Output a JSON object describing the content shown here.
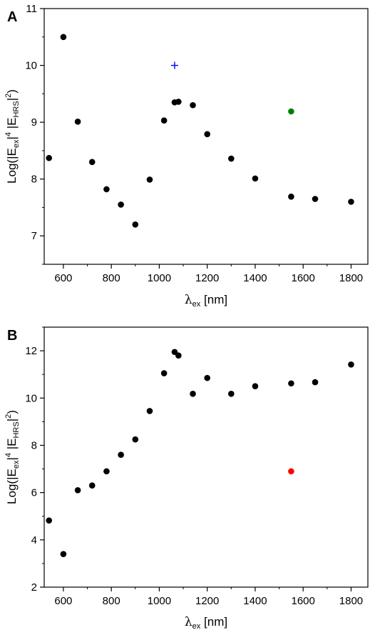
{
  "chart_data": [
    {
      "type": "scatter",
      "panel_label": "A",
      "xlabel": {
        "symbol": "λ",
        "sub": "ex",
        "rest": " [nm]"
      },
      "ylabel": {
        "pre": "Log(|E",
        "sub1": "ex",
        "mid1": "|",
        "sup1": "4",
        "mid2": " |E",
        "sub2": "HRS",
        "mid3": "|",
        "sup2": "2",
        "post": ")"
      },
      "xlim": [
        520,
        1870
      ],
      "ylim": [
        6.5,
        11
      ],
      "xticks": [
        600,
        800,
        1000,
        1200,
        1400,
        1600,
        1800
      ],
      "yticks": [
        7,
        8,
        9,
        10,
        11
      ],
      "grid": false,
      "series": [
        {
          "marker": "circle",
          "color": "#000000",
          "x": [
            540,
            600,
            660,
            720,
            780,
            840,
            900,
            960,
            1020,
            1064,
            1080,
            1140,
            1200,
            1300,
            1400,
            1550,
            1650,
            1800
          ],
          "y": [
            8.37,
            10.5,
            9.01,
            8.3,
            7.82,
            7.55,
            7.2,
            7.99,
            9.03,
            9.35,
            9.36,
            9.3,
            8.79,
            8.36,
            8.01,
            7.69,
            7.65,
            7.6
          ]
        },
        {
          "marker": "plus",
          "color": "#0000ff",
          "x": [
            1064
          ],
          "y": [
            10.0
          ]
        },
        {
          "marker": "circle",
          "color": "#008000",
          "x": [
            1550
          ],
          "y": [
            9.19
          ]
        }
      ]
    },
    {
      "type": "scatter",
      "panel_label": "B",
      "xlabel": {
        "symbol": "λ",
        "sub": "ex",
        "rest": " [nm]"
      },
      "ylabel": {
        "pre": "Log(|E",
        "sub1": "ex",
        "mid1": "|",
        "sup1": "4",
        "mid2": " |E",
        "sub2": "HRS",
        "mid3": "|",
        "sup2": "2",
        "post": ")"
      },
      "xlim": [
        520,
        1870
      ],
      "ylim": [
        2,
        13
      ],
      "xticks": [
        600,
        800,
        1000,
        1200,
        1400,
        1600,
        1800
      ],
      "yticks": [
        2,
        4,
        6,
        8,
        10,
        12
      ],
      "grid": false,
      "series": [
        {
          "marker": "circle",
          "color": "#000000",
          "x": [
            540,
            600,
            660,
            720,
            780,
            840,
            900,
            960,
            1020,
            1064,
            1080,
            1140,
            1200,
            1300,
            1400,
            1550,
            1650,
            1800
          ],
          "y": [
            4.82,
            3.4,
            6.1,
            6.3,
            6.9,
            7.6,
            8.25,
            9.45,
            11.05,
            11.95,
            11.8,
            10.18,
            10.85,
            10.18,
            10.5,
            10.62,
            10.67,
            11.42
          ]
        },
        {
          "marker": "circle",
          "color": "#ff0000",
          "x": [
            1550
          ],
          "y": [
            6.9
          ]
        }
      ]
    }
  ]
}
